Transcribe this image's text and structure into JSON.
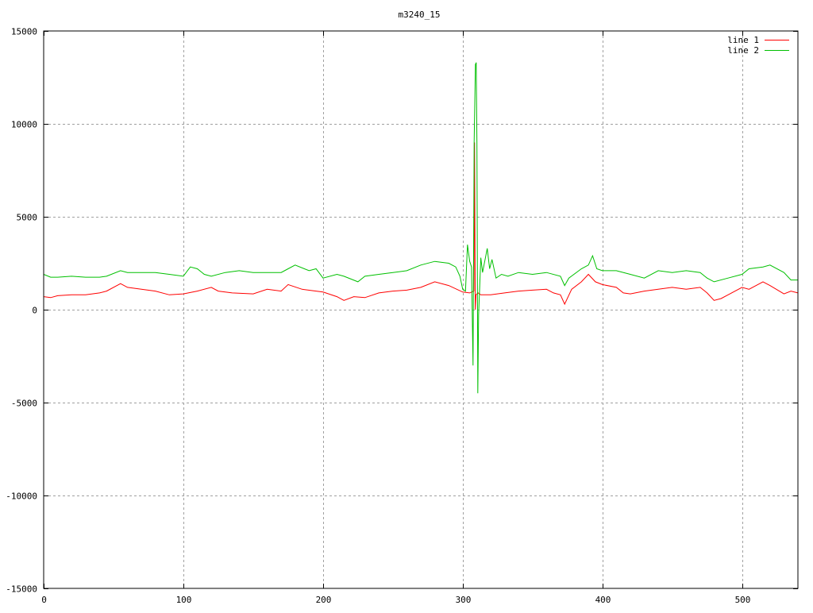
{
  "chart_data": {
    "type": "line",
    "title": "m3240_15",
    "xlabel": "",
    "ylabel": "",
    "xlim": [
      0,
      540
    ],
    "ylim": [
      -15000,
      15000
    ],
    "xticks": [
      0,
      100,
      200,
      300,
      400,
      500
    ],
    "yticks": [
      -15000,
      -10000,
      -5000,
      0,
      5000,
      10000,
      15000
    ],
    "grid": true,
    "legend_position": "top-right",
    "series": [
      {
        "name": "line 1",
        "color": "#ff0000",
        "x": [
          0,
          5,
          10,
          20,
          30,
          40,
          45,
          55,
          60,
          70,
          80,
          90,
          100,
          110,
          120,
          125,
          135,
          150,
          160,
          170,
          175,
          185,
          195,
          200,
          210,
          215,
          222,
          230,
          240,
          250,
          260,
          270,
          280,
          290,
          300,
          305,
          308,
          308.5,
          309,
          309.5,
          311,
          313,
          320,
          330,
          340,
          350,
          360,
          365,
          370,
          373,
          378,
          385,
          390,
          395,
          400,
          410,
          415,
          420,
          430,
          440,
          450,
          460,
          470,
          475,
          480,
          485,
          490,
          500,
          505,
          515,
          520,
          530,
          535,
          540
        ],
        "y": [
          700,
          650,
          750,
          800,
          800,
          900,
          1000,
          1400,
          1200,
          1100,
          1000,
          800,
          850,
          1000,
          1200,
          1000,
          900,
          850,
          1100,
          1000,
          1350,
          1100,
          1000,
          950,
          700,
          500,
          700,
          650,
          900,
          1000,
          1050,
          1200,
          1500,
          1300,
          950,
          900,
          1000,
          9000,
          0,
          800,
          900,
          800,
          800,
          900,
          1000,
          1050,
          1100,
          900,
          800,
          300,
          1100,
          1500,
          1900,
          1500,
          1350,
          1200,
          900,
          850,
          1000,
          1100,
          1200,
          1100,
          1200,
          900,
          500,
          600,
          800,
          1200,
          1100,
          1500,
          1300,
          850,
          1000,
          900
        ]
      },
      {
        "name": "line 2",
        "color": "#00c000",
        "x": [
          0,
          5,
          10,
          20,
          30,
          40,
          45,
          55,
          60,
          70,
          80,
          90,
          100,
          105,
          110,
          115,
          120,
          130,
          140,
          150,
          160,
          170,
          175,
          180,
          190,
          195,
          200,
          210,
          215,
          225,
          230,
          240,
          250,
          260,
          270,
          280,
          290,
          295,
          298,
          300,
          302,
          303.4,
          305,
          306.3,
          307.4,
          308.2,
          309.1,
          309.7,
          310.2,
          310.8,
          311.4,
          313,
          314.2,
          317.6,
          319.3,
          321,
          323.9,
          327.8,
          332.4,
          340,
          350,
          360,
          370,
          373,
          376,
          385,
          390,
          393,
          396,
          400,
          410,
          420,
          430,
          440,
          450,
          460,
          470,
          475,
          480,
          490,
          500,
          505,
          515,
          520,
          530,
          535,
          540
        ],
        "y": [
          1900,
          1750,
          1750,
          1800,
          1750,
          1750,
          1800,
          2100,
          2000,
          2000,
          2000,
          1900,
          1800,
          2300,
          2200,
          1900,
          1800,
          2000,
          2100,
          2000,
          2000,
          2000,
          2200,
          2400,
          2100,
          2200,
          1700,
          1900,
          1800,
          1500,
          1800,
          1900,
          2000,
          2100,
          2400,
          2600,
          2500,
          2300,
          1800,
          1100,
          1000,
          3500,
          2600,
          2300,
          -3000,
          9000,
          13200,
          13300,
          9000,
          -4500,
          -300,
          2800,
          2000,
          3300,
          2200,
          2700,
          1700,
          1900,
          1800,
          2000,
          1900,
          2000,
          1800,
          1300,
          1700,
          2200,
          2400,
          2900,
          2200,
          2100,
          2100,
          1900,
          1700,
          2100,
          2000,
          2100,
          2000,
          1700,
          1500,
          1700,
          1900,
          2200,
          2300,
          2400,
          2000,
          1600,
          1600
        ]
      }
    ]
  }
}
